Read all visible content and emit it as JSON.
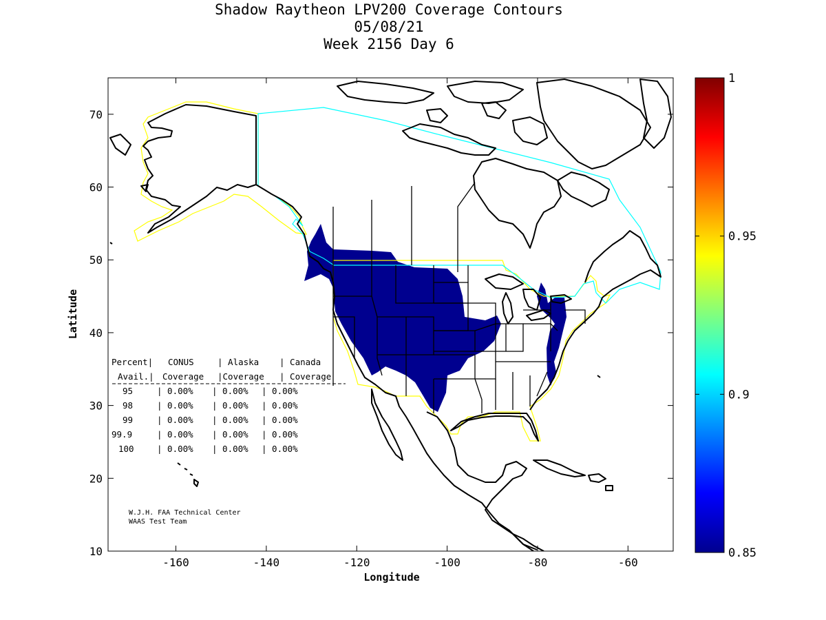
{
  "title": {
    "line1": "Shadow Raytheon LPV200 Coverage Contours",
    "line2": "05/08/21",
    "line3": "Week 2156 Day 6"
  },
  "axes": {
    "xlabel": "Longitude",
    "ylabel": "Latitude",
    "xlim": [
      -175,
      -50
    ],
    "ylim": [
      10,
      75
    ],
    "xticks": [
      -160,
      -140,
      -120,
      -100,
      -80,
      -60
    ],
    "yticks": [
      10,
      20,
      30,
      40,
      50,
      60,
      70
    ],
    "xtick_labels": [
      "-160",
      "-140",
      "-120",
      "-100",
      "-80",
      "-60"
    ],
    "ytick_labels": [
      "10",
      "20",
      "30",
      "40",
      "50",
      "60",
      "70"
    ]
  },
  "colorbar": {
    "range": [
      0.85,
      1
    ],
    "tick_labels": [
      "1",
      "0.95",
      "0.9",
      "0.85"
    ],
    "colormap": "jet"
  },
  "coverage_table": {
    "header1": [
      "Percent|",
      "CONUS",
      "| Alaska",
      "| Canada"
    ],
    "header2": [
      "Avail.|",
      "Coverage",
      "|Coverage",
      "| Coverage"
    ],
    "rows": [
      [
        "95",
        "| 0.00%",
        "| 0.00%",
        "| 0.00%"
      ],
      [
        "98",
        "| 0.00%",
        "| 0.00%",
        "| 0.00%"
      ],
      [
        "99",
        "| 0.00%",
        "| 0.00%",
        "| 0.00%"
      ],
      [
        "99.9",
        "| 0.00%",
        "| 0.00%",
        "| 0.00%"
      ],
      [
        "100",
        "| 0.00%",
        "| 0.00%",
        "| 0.00%"
      ]
    ]
  },
  "credit": {
    "line1": "W.J.H. FAA Technical Center",
    "line2": "WAAS Test Team"
  },
  "colors": {
    "coverage_fill": "#00008f",
    "conus_alaska_boundary": "#ffff00",
    "canada_boundary": "#00ffff",
    "coastline": "#000000"
  }
}
